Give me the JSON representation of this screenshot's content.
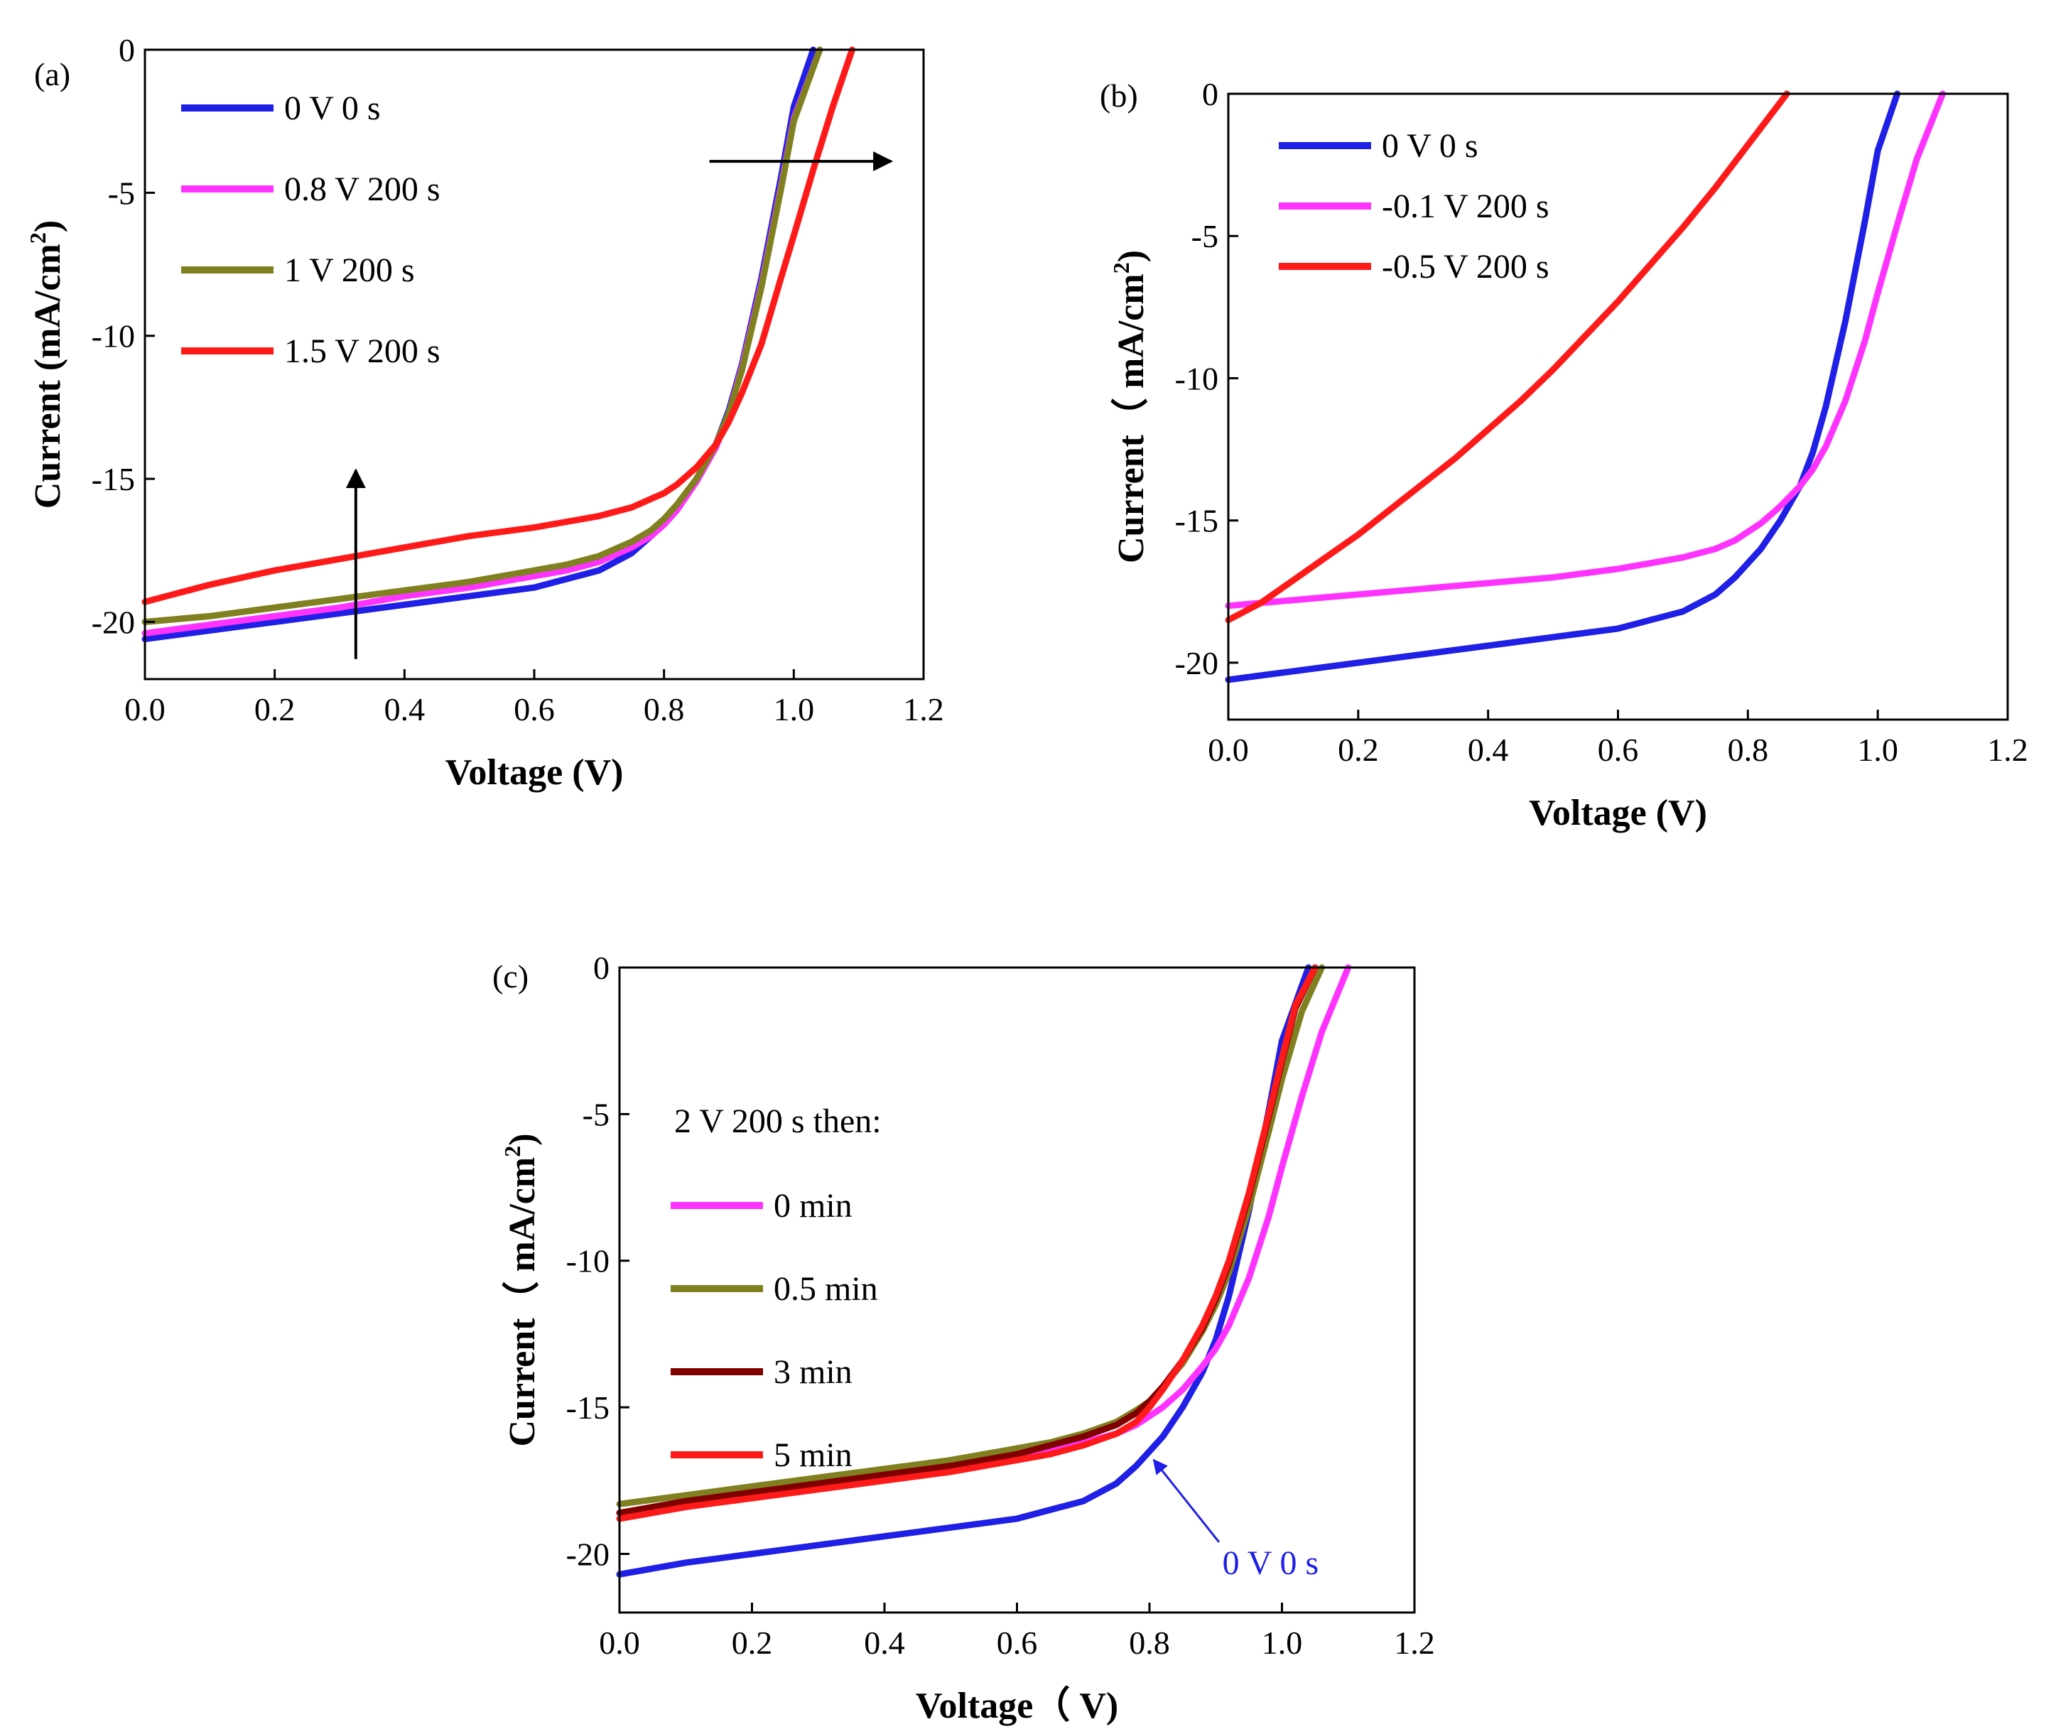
{
  "chart_data": [
    {
      "type": "line",
      "panel_label": "(a)",
      "xlabel": "Voltage (V)",
      "ylabel": "Current (mA/cm",
      "ylabel_sup": "2",
      "ylabel_close": ")",
      "xlim": [
        0.0,
        1.2
      ],
      "ylim": [
        -22,
        0
      ],
      "xticks": [
        "0.0",
        "0.2",
        "0.4",
        "0.6",
        "0.8",
        "1.0",
        "1.2"
      ],
      "yticks": [
        "0",
        "-5",
        "-10",
        "-15",
        "-20"
      ],
      "legend_position": "top-left",
      "annotations": [
        "arrow pointing up near V=0.32",
        "arrow pointing right near V=0.9, J=-3.8"
      ],
      "series": [
        {
          "name": "0 V 0 s",
          "color": "#1f1fe6",
          "x": [
            0,
            0.1,
            0.2,
            0.3,
            0.4,
            0.5,
            0.6,
            0.65,
            0.7,
            0.75,
            0.78,
            0.8,
            0.82,
            0.85,
            0.88,
            0.9,
            0.92,
            0.95,
            0.98,
            1.0,
            1.03
          ],
          "y": [
            -20.6,
            -20.3,
            -20.0,
            -19.7,
            -19.4,
            -19.1,
            -18.8,
            -18.5,
            -18.2,
            -17.6,
            -17.0,
            -16.5,
            -16.0,
            -15.0,
            -13.8,
            -12.6,
            -11.0,
            -8.0,
            -4.5,
            -2.0,
            0
          ]
        },
        {
          "name": "0.8 V 200 s",
          "color": "#ff33ff",
          "x": [
            0,
            0.1,
            0.2,
            0.3,
            0.4,
            0.5,
            0.6,
            0.65,
            0.7,
            0.75,
            0.78,
            0.8,
            0.82,
            0.85,
            0.88,
            0.9,
            0.92,
            0.95,
            0.98,
            1.0,
            1.04
          ],
          "y": [
            -20.4,
            -20.1,
            -19.8,
            -19.5,
            -19.1,
            -18.8,
            -18.4,
            -18.2,
            -17.9,
            -17.4,
            -17.0,
            -16.6,
            -16.1,
            -15.1,
            -13.9,
            -12.7,
            -11.1,
            -8.2,
            -4.8,
            -2.4,
            0
          ]
        },
        {
          "name": "1 V 200 s",
          "color": "#808020",
          "x": [
            0,
            0.1,
            0.2,
            0.3,
            0.4,
            0.5,
            0.6,
            0.65,
            0.7,
            0.75,
            0.78,
            0.8,
            0.82,
            0.85,
            0.88,
            0.9,
            0.92,
            0.95,
            0.98,
            1.0,
            1.04
          ],
          "y": [
            -20.0,
            -19.8,
            -19.5,
            -19.2,
            -18.9,
            -18.6,
            -18.2,
            -18.0,
            -17.7,
            -17.2,
            -16.8,
            -16.4,
            -15.9,
            -15.0,
            -13.8,
            -12.7,
            -11.2,
            -8.3,
            -4.9,
            -2.5,
            0
          ]
        },
        {
          "name": "1.5 V 200 s",
          "color": "#ff1a1a",
          "x": [
            0,
            0.1,
            0.2,
            0.3,
            0.4,
            0.5,
            0.6,
            0.65,
            0.7,
            0.75,
            0.78,
            0.8,
            0.82,
            0.85,
            0.88,
            0.9,
            0.92,
            0.95,
            0.98,
            1.0,
            1.03,
            1.06,
            1.09
          ],
          "y": [
            -19.3,
            -18.7,
            -18.2,
            -17.8,
            -17.4,
            -17.0,
            -16.7,
            -16.5,
            -16.3,
            -16.0,
            -15.7,
            -15.5,
            -15.2,
            -14.6,
            -13.8,
            -13.0,
            -12.0,
            -10.3,
            -8.0,
            -6.5,
            -4.2,
            -2.0,
            0
          ]
        }
      ]
    },
    {
      "type": "line",
      "panel_label": "(b)",
      "xlabel": "Voltage (V)",
      "ylabel": "Current（ mA/cm",
      "ylabel_sup": "2",
      "ylabel_close": ")",
      "xlim": [
        0.0,
        1.2
      ],
      "ylim": [
        -22,
        0
      ],
      "xticks": [
        "0.0",
        "0.2",
        "0.4",
        "0.6",
        "0.8",
        "1.0",
        "1.2"
      ],
      "yticks": [
        "0",
        "-5",
        "-10",
        "-15",
        "-20"
      ],
      "legend_position": "top-left",
      "series": [
        {
          "name": "0 V 0 s",
          "color": "#1f1fe6",
          "x": [
            0,
            0.1,
            0.2,
            0.3,
            0.4,
            0.5,
            0.6,
            0.65,
            0.7,
            0.75,
            0.78,
            0.8,
            0.82,
            0.85,
            0.88,
            0.9,
            0.92,
            0.95,
            0.98,
            1.0,
            1.03
          ],
          "y": [
            -20.6,
            -20.3,
            -20.0,
            -19.7,
            -19.4,
            -19.1,
            -18.8,
            -18.5,
            -18.2,
            -17.6,
            -17.0,
            -16.5,
            -16.0,
            -15.0,
            -13.8,
            -12.6,
            -11.0,
            -8.0,
            -4.5,
            -2.0,
            0
          ]
        },
        {
          "name": "-0.1 V 200 s",
          "color": "#ff33ff",
          "x": [
            0,
            0.1,
            0.2,
            0.3,
            0.4,
            0.5,
            0.6,
            0.65,
            0.7,
            0.75,
            0.78,
            0.8,
            0.82,
            0.85,
            0.88,
            0.9,
            0.92,
            0.95,
            0.98,
            1.0,
            1.03,
            1.06,
            1.1
          ],
          "y": [
            -18.0,
            -17.8,
            -17.6,
            -17.4,
            -17.2,
            -17.0,
            -16.7,
            -16.5,
            -16.3,
            -16.0,
            -15.7,
            -15.4,
            -15.1,
            -14.5,
            -13.8,
            -13.2,
            -12.4,
            -10.8,
            -8.7,
            -7.0,
            -4.6,
            -2.3,
            0
          ]
        },
        {
          "name": "-0.5 V 200 s",
          "color": "#ff1a1a",
          "x": [
            0,
            0.05,
            0.1,
            0.15,
            0.2,
            0.25,
            0.3,
            0.35,
            0.4,
            0.45,
            0.5,
            0.55,
            0.6,
            0.65,
            0.7,
            0.75,
            0.8,
            0.83,
            0.86
          ],
          "y": [
            -18.5,
            -17.9,
            -17.1,
            -16.3,
            -15.5,
            -14.6,
            -13.7,
            -12.8,
            -11.8,
            -10.8,
            -9.7,
            -8.5,
            -7.3,
            -6.0,
            -4.7,
            -3.3,
            -1.8,
            -0.9,
            0
          ]
        }
      ]
    },
    {
      "type": "line",
      "panel_label": "(c)",
      "xlabel": "Voltage（ V)",
      "ylabel": "Current（ mA/cm",
      "ylabel_sup": "2",
      "ylabel_close": ")",
      "xlim": [
        0.0,
        1.2
      ],
      "ylim": [
        -22,
        0
      ],
      "xticks": [
        "0.0",
        "0.2",
        "0.4",
        "0.6",
        "0.8",
        "1.0",
        "1.2"
      ],
      "yticks": [
        "0",
        "-5",
        "-10",
        "-15",
        "-20"
      ],
      "legend_title": "2 V 200 s then:",
      "legend_position": "top-left",
      "annotation": {
        "text": "0 V 0 s",
        "color": "#1f1fe6",
        "points_to_x": 0.8,
        "points_to_y": -16.7
      },
      "series": [
        {
          "name": "0 V 0 s",
          "color": "#1f1fe6",
          "in_legend": false,
          "x": [
            0,
            0.1,
            0.2,
            0.3,
            0.4,
            0.5,
            0.6,
            0.65,
            0.7,
            0.75,
            0.78,
            0.8,
            0.82,
            0.85,
            0.88,
            0.9,
            0.92,
            0.95,
            0.98,
            1.0,
            1.04
          ],
          "y": [
            -20.7,
            -20.3,
            -20.0,
            -19.7,
            -19.4,
            -19.1,
            -18.8,
            -18.5,
            -18.2,
            -17.6,
            -17.0,
            -16.5,
            -16.0,
            -15.0,
            -13.8,
            -12.7,
            -11.2,
            -8.3,
            -4.9,
            -2.5,
            0
          ]
        },
        {
          "name": "0 min",
          "color": "#ff33ff",
          "x": [
            0,
            0.1,
            0.2,
            0.3,
            0.4,
            0.5,
            0.6,
            0.65,
            0.7,
            0.75,
            0.78,
            0.8,
            0.82,
            0.85,
            0.88,
            0.9,
            0.92,
            0.95,
            0.98,
            1.0,
            1.03,
            1.06,
            1.1
          ],
          "y": [
            -18.6,
            -18.3,
            -18.0,
            -17.7,
            -17.4,
            -17.1,
            -16.7,
            -16.5,
            -16.2,
            -15.9,
            -15.6,
            -15.3,
            -15.0,
            -14.4,
            -13.6,
            -13.0,
            -12.2,
            -10.6,
            -8.5,
            -6.8,
            -4.4,
            -2.2,
            0
          ]
        },
        {
          "name": "0.5 min",
          "color": "#808020",
          "x": [
            0,
            0.1,
            0.2,
            0.3,
            0.4,
            0.5,
            0.6,
            0.65,
            0.7,
            0.75,
            0.78,
            0.8,
            0.82,
            0.85,
            0.88,
            0.9,
            0.92,
            0.95,
            0.98,
            1.0,
            1.03,
            1.06
          ],
          "y": [
            -18.3,
            -18.0,
            -17.7,
            -17.4,
            -17.1,
            -16.8,
            -16.4,
            -16.2,
            -15.9,
            -15.5,
            -15.1,
            -14.8,
            -14.3,
            -13.5,
            -12.4,
            -11.5,
            -10.4,
            -8.2,
            -5.6,
            -3.8,
            -1.5,
            0
          ]
        },
        {
          "name": "3 min",
          "color": "#800000",
          "x": [
            0,
            0.1,
            0.2,
            0.3,
            0.4,
            0.5,
            0.6,
            0.65,
            0.7,
            0.75,
            0.78,
            0.8,
            0.82,
            0.85,
            0.88,
            0.9,
            0.92,
            0.95,
            0.98,
            1.0,
            1.02,
            1.05
          ],
          "y": [
            -18.6,
            -18.2,
            -17.9,
            -17.6,
            -17.3,
            -17.0,
            -16.6,
            -16.3,
            -16.0,
            -15.6,
            -15.2,
            -14.8,
            -14.3,
            -13.4,
            -12.3,
            -11.3,
            -10.1,
            -7.8,
            -5.1,
            -3.2,
            -1.4,
            0
          ]
        },
        {
          "name": "5 min",
          "color": "#ff1a1a",
          "x": [
            0,
            0.1,
            0.2,
            0.3,
            0.4,
            0.5,
            0.6,
            0.65,
            0.7,
            0.75,
            0.78,
            0.8,
            0.82,
            0.85,
            0.88,
            0.9,
            0.92,
            0.95,
            0.98,
            1.0,
            1.02,
            1.05
          ],
          "y": [
            -18.8,
            -18.4,
            -18.1,
            -17.8,
            -17.5,
            -17.2,
            -16.8,
            -16.6,
            -16.3,
            -15.9,
            -15.5,
            -15.0,
            -14.4,
            -13.4,
            -12.2,
            -11.2,
            -10.0,
            -7.7,
            -5.0,
            -3.1,
            -1.3,
            0
          ]
        }
      ]
    }
  ]
}
